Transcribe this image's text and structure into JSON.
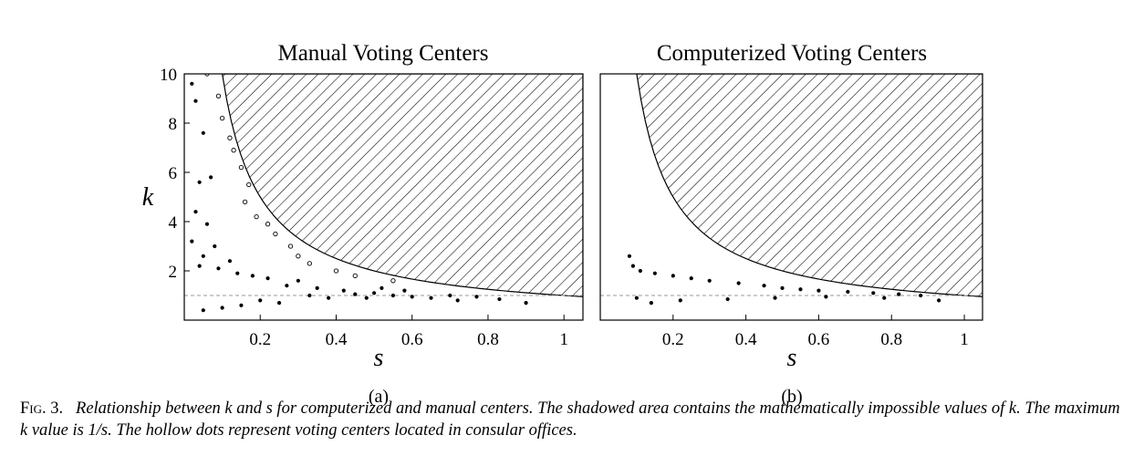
{
  "chart_data": [
    {
      "type": "scatter",
      "panel": "a",
      "title": "Manual Voting Centers",
      "xlabel": "s",
      "ylabel": "k",
      "xlim": [
        0,
        1.05
      ],
      "ylim": [
        0,
        10
      ],
      "xticks": [
        "0.2",
        "0.4",
        "0.6",
        "0.8",
        "1"
      ],
      "yticks": [
        "2",
        "4",
        "6",
        "8",
        "10"
      ],
      "sublabel": "(a)",
      "boundary": "k = 1/s (shaded hatched region above)",
      "reference_line_k": 1,
      "points_filled": [
        [
          0.02,
          9.6
        ],
        [
          0.03,
          8.9
        ],
        [
          0.05,
          7.6
        ],
        [
          0.07,
          5.8
        ],
        [
          0.04,
          5.6
        ],
        [
          0.03,
          4.4
        ],
        [
          0.06,
          3.9
        ],
        [
          0.02,
          3.2
        ],
        [
          0.08,
          3.0
        ],
        [
          0.05,
          2.6
        ],
        [
          0.12,
          2.4
        ],
        [
          0.04,
          2.2
        ],
        [
          0.09,
          2.1
        ],
        [
          0.14,
          1.9
        ],
        [
          0.18,
          1.8
        ],
        [
          0.22,
          1.7
        ],
        [
          0.3,
          1.6
        ],
        [
          0.27,
          1.4
        ],
        [
          0.35,
          1.3
        ],
        [
          0.42,
          1.2
        ],
        [
          0.5,
          1.1
        ],
        [
          0.55,
          1.0
        ],
        [
          0.6,
          0.95
        ],
        [
          0.65,
          0.9
        ],
        [
          0.72,
          0.8
        ],
        [
          0.83,
          0.85
        ],
        [
          0.9,
          0.7
        ],
        [
          0.48,
          0.9
        ],
        [
          0.2,
          0.8
        ],
        [
          0.15,
          0.6
        ],
        [
          0.1,
          0.5
        ],
        [
          0.25,
          0.7
        ],
        [
          0.05,
          0.4
        ],
        [
          0.38,
          0.9
        ],
        [
          0.33,
          1.0
        ],
        [
          0.45,
          1.05
        ],
        [
          0.7,
          1.0
        ],
        [
          0.77,
          0.95
        ],
        [
          0.58,
          1.2
        ],
        [
          0.52,
          1.3
        ]
      ],
      "points_hollow": [
        [
          0.06,
          10.0
        ],
        [
          0.09,
          9.1
        ],
        [
          0.1,
          8.2
        ],
        [
          0.12,
          7.4
        ],
        [
          0.13,
          6.9
        ],
        [
          0.15,
          6.2
        ],
        [
          0.17,
          5.5
        ],
        [
          0.16,
          4.8
        ],
        [
          0.19,
          4.2
        ],
        [
          0.22,
          3.9
        ],
        [
          0.24,
          3.5
        ],
        [
          0.28,
          3.0
        ],
        [
          0.3,
          2.6
        ],
        [
          0.33,
          2.3
        ],
        [
          0.4,
          2.0
        ],
        [
          0.45,
          1.8
        ],
        [
          0.55,
          1.6
        ]
      ]
    },
    {
      "type": "scatter",
      "panel": "b",
      "title": "Computerized Voting Centers",
      "xlabel": "s",
      "ylabel": "",
      "xlim": [
        0,
        1.05
      ],
      "ylim": [
        0,
        10
      ],
      "xticks": [
        "0.2",
        "0.4",
        "0.6",
        "0.8",
        "1"
      ],
      "sublabel": "(b)",
      "boundary": "k = 1/s (shaded hatched region above)",
      "reference_line_k": 1,
      "points_filled": [
        [
          0.08,
          2.6
        ],
        [
          0.09,
          2.2
        ],
        [
          0.11,
          2.0
        ],
        [
          0.15,
          1.9
        ],
        [
          0.2,
          1.8
        ],
        [
          0.25,
          1.7
        ],
        [
          0.3,
          1.6
        ],
        [
          0.38,
          1.5
        ],
        [
          0.45,
          1.4
        ],
        [
          0.5,
          1.3
        ],
        [
          0.55,
          1.25
        ],
        [
          0.6,
          1.2
        ],
        [
          0.68,
          1.15
        ],
        [
          0.75,
          1.1
        ],
        [
          0.82,
          1.05
        ],
        [
          0.88,
          1.0
        ],
        [
          0.93,
          0.8
        ],
        [
          0.1,
          0.9
        ],
        [
          0.14,
          0.7
        ],
        [
          0.22,
          0.8
        ],
        [
          0.35,
          0.85
        ],
        [
          0.48,
          0.9
        ],
        [
          0.62,
          0.95
        ],
        [
          0.78,
          0.9
        ]
      ],
      "points_hollow": []
    }
  ],
  "caption": {
    "label": "Fig. 3.",
    "text": "Relationship between k and s for computerized and manual centers. The shadowed area contains the mathematically impossible values of k. The maximum k value is 1/s. The hollow dots represent voting centers located in consular offices."
  }
}
